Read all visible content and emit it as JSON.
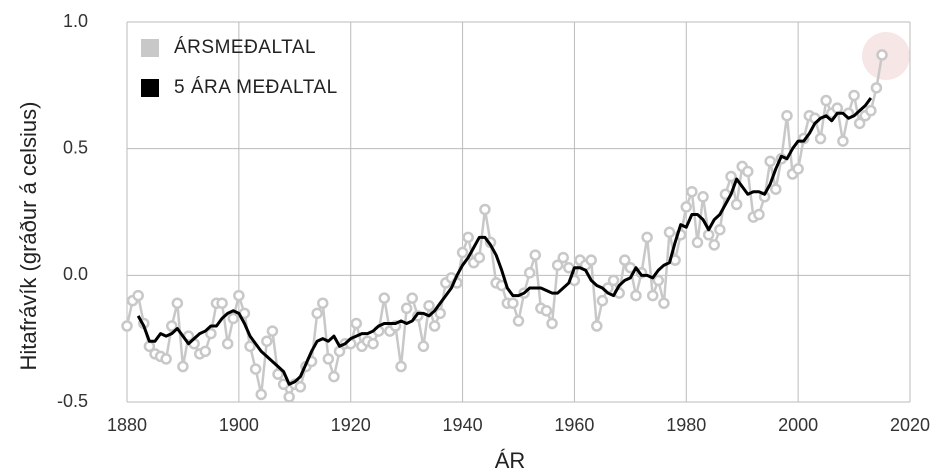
{
  "chart_data": {
    "type": "line",
    "ylabel": "Hitafrávík (gráður á celsius)",
    "xlabel": "ÁR",
    "x": [
      1880,
      1881,
      1882,
      1883,
      1884,
      1885,
      1886,
      1887,
      1888,
      1889,
      1890,
      1891,
      1892,
      1893,
      1894,
      1895,
      1896,
      1897,
      1898,
      1899,
      1900,
      1901,
      1902,
      1903,
      1904,
      1905,
      1906,
      1907,
      1908,
      1909,
      1910,
      1911,
      1912,
      1913,
      1914,
      1915,
      1916,
      1917,
      1918,
      1919,
      1920,
      1921,
      1922,
      1923,
      1924,
      1925,
      1926,
      1927,
      1928,
      1929,
      1930,
      1931,
      1932,
      1933,
      1934,
      1935,
      1936,
      1937,
      1938,
      1939,
      1940,
      1941,
      1942,
      1943,
      1944,
      1945,
      1946,
      1947,
      1948,
      1949,
      1950,
      1951,
      1952,
      1953,
      1954,
      1955,
      1956,
      1957,
      1958,
      1959,
      1960,
      1961,
      1962,
      1963,
      1964,
      1965,
      1966,
      1967,
      1968,
      1969,
      1970,
      1971,
      1972,
      1973,
      1974,
      1975,
      1976,
      1977,
      1978,
      1979,
      1980,
      1981,
      1982,
      1983,
      1984,
      1985,
      1986,
      1987,
      1988,
      1989,
      1990,
      1991,
      1992,
      1993,
      1994,
      1995,
      1996,
      1997,
      1998,
      1999,
      2000,
      2001,
      2002,
      2003,
      2004,
      2005,
      2006,
      2007,
      2008,
      2009,
      2010,
      2011,
      2012,
      2013,
      2014,
      2015
    ],
    "series": [
      {
        "name": "ÁRSMEÐALTAL",
        "color": "#c8c8c8",
        "markers": true,
        "values": [
          -0.2,
          -0.1,
          -0.08,
          -0.19,
          -0.28,
          -0.31,
          -0.32,
          -0.33,
          -0.2,
          -0.11,
          -0.36,
          -0.24,
          -0.27,
          -0.31,
          -0.3,
          -0.23,
          -0.11,
          -0.11,
          -0.27,
          -0.17,
          -0.08,
          -0.15,
          -0.28,
          -0.37,
          -0.47,
          -0.26,
          -0.22,
          -0.39,
          -0.43,
          -0.48,
          -0.43,
          -0.44,
          -0.36,
          -0.34,
          -0.15,
          -0.11,
          -0.33,
          -0.4,
          -0.3,
          -0.27,
          -0.27,
          -0.19,
          -0.28,
          -0.26,
          -0.27,
          -0.22,
          -0.09,
          -0.22,
          -0.2,
          -0.36,
          -0.13,
          -0.09,
          -0.16,
          -0.28,
          -0.12,
          -0.2,
          -0.15,
          -0.03,
          -0.01,
          -0.03,
          0.09,
          0.15,
          0.05,
          0.07,
          0.26,
          0.13,
          -0.03,
          -0.04,
          -0.11,
          -0.11,
          -0.18,
          -0.07,
          0.01,
          0.08,
          -0.13,
          -0.14,
          -0.19,
          0.04,
          0.07,
          0.03,
          -0.02,
          0.06,
          0.04,
          0.06,
          -0.2,
          -0.1,
          -0.05,
          -0.02,
          -0.07,
          0.06,
          0.03,
          -0.08,
          0.01,
          0.15,
          -0.08,
          -0.02,
          -0.11,
          0.17,
          0.06,
          0.16,
          0.27,
          0.33,
          0.13,
          0.31,
          0.16,
          0.12,
          0.18,
          0.32,
          0.39,
          0.28,
          0.43,
          0.41,
          0.23,
          0.24,
          0.31,
          0.45,
          0.34,
          0.46,
          0.63,
          0.4,
          0.42,
          0.54,
          0.63,
          0.62,
          0.54,
          0.69,
          0.64,
          0.66,
          0.53,
          0.64,
          0.71,
          0.6,
          0.63,
          0.65,
          0.74,
          0.87
        ]
      },
      {
        "name": "5 ÁRA MEÐALTAL",
        "color": "#000000",
        "markers": false,
        "values": [
          null,
          null,
          -0.16,
          -0.2,
          -0.26,
          -0.26,
          -0.23,
          -0.24,
          -0.23,
          -0.21,
          -0.24,
          -0.27,
          -0.25,
          -0.23,
          -0.22,
          -0.2,
          -0.2,
          -0.17,
          -0.15,
          -0.14,
          -0.15,
          -0.19,
          -0.24,
          -0.27,
          -0.3,
          -0.32,
          -0.34,
          -0.36,
          -0.38,
          -0.43,
          -0.42,
          -0.4,
          -0.35,
          -0.3,
          -0.26,
          -0.25,
          -0.26,
          -0.24,
          -0.28,
          -0.27,
          -0.25,
          -0.24,
          -0.23,
          -0.23,
          -0.22,
          -0.2,
          -0.19,
          -0.19,
          -0.19,
          -0.18,
          -0.19,
          -0.18,
          -0.15,
          -0.15,
          -0.16,
          -0.14,
          -0.11,
          -0.08,
          -0.05,
          0.0,
          0.04,
          0.07,
          0.11,
          0.15,
          0.15,
          0.12,
          0.08,
          0.02,
          -0.05,
          -0.08,
          -0.08,
          -0.07,
          -0.05,
          -0.05,
          -0.05,
          -0.06,
          -0.07,
          -0.07,
          -0.05,
          -0.03,
          0.03,
          0.03,
          0.02,
          -0.02,
          -0.04,
          -0.05,
          -0.07,
          -0.08,
          -0.04,
          -0.02,
          -0.01,
          0.03,
          0.0,
          0.0,
          -0.01,
          0.02,
          0.04,
          0.05,
          0.13,
          0.2,
          0.19,
          0.24,
          0.24,
          0.22,
          0.18,
          0.22,
          0.24,
          0.28,
          0.32,
          0.38,
          0.35,
          0.32,
          0.33,
          0.33,
          0.32,
          0.36,
          0.42,
          0.47,
          0.46,
          0.5,
          0.53,
          0.53,
          0.56,
          0.6,
          0.62,
          0.63,
          0.61,
          0.64,
          0.64,
          0.62,
          0.63,
          0.65,
          0.67,
          0.7,
          null,
          null
        ]
      }
    ],
    "xlim": [
      1880,
      2020
    ],
    "xticks": [
      1880,
      1900,
      1920,
      1940,
      1960,
      1980,
      2000,
      2020
    ],
    "ylim": [
      -0.5,
      1.0
    ],
    "yticks": [
      {
        "value": -0.5,
        "label": "-0.5"
      },
      {
        "value": 0,
        "label": "0.0"
      },
      {
        "value": 0.5,
        "label": "0.5"
      },
      {
        "value": 1,
        "label": "1.0"
      }
    ],
    "grid": true,
    "legend": "upper left"
  }
}
